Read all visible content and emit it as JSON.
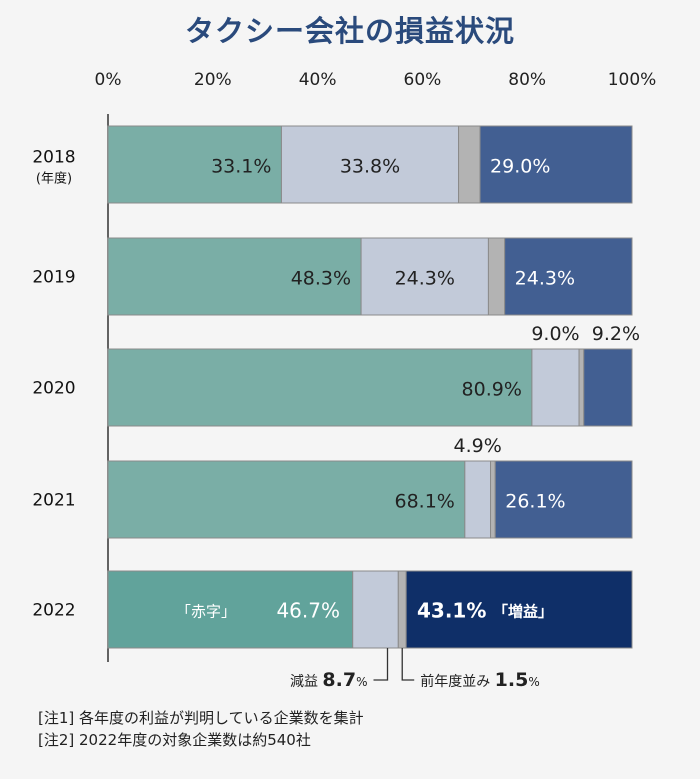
{
  "title": "タクシー会社の損益状況",
  "year_unit": "(年度)",
  "notes": [
    "[注1] 各年度の利益が判明している企業数を集計",
    "[注2] 2022年度の対象企業数は約540社"
  ],
  "highlight_2022": {
    "red_label": "「赤字」",
    "profit_label": "「増益」",
    "decrease_label": "減益",
    "decrease_value": "8.7",
    "flat_label": "前年度並み",
    "flat_value": "1.5",
    "pct_small": "%"
  },
  "colors": {
    "red": "#7aaea6",
    "red_2022": "#61a39b",
    "decrease": "#c2cad9",
    "flat": "#b3b3b3",
    "increase": "#425f92",
    "increase_2022": "#0f2f68"
  },
  "chart_data": {
    "type": "bar",
    "orientation": "horizontal",
    "stacked": true,
    "x_ticks": [
      "0%",
      "20%",
      "40%",
      "60%",
      "80%",
      "100%"
    ],
    "xlim": [
      0,
      100
    ],
    "categories": [
      "2018",
      "2019",
      "2020",
      "2021",
      "2022"
    ],
    "series": [
      {
        "key": "red",
        "values": [
          33.1,
          48.3,
          80.9,
          68.1,
          46.7
        ],
        "labels": [
          "33.1%",
          "48.3%",
          "80.9%",
          "68.1%",
          "46.7%"
        ]
      },
      {
        "key": "decrease",
        "values": [
          33.8,
          24.3,
          9.0,
          4.9,
          8.7
        ],
        "labels": [
          "33.8%",
          "24.3%",
          "9.0%",
          "4.9%",
          ""
        ]
      },
      {
        "key": "flat",
        "values": [
          4.1,
          3.1,
          0.9,
          0.9,
          1.5
        ],
        "labels": [
          "",
          "",
          "",
          "",
          ""
        ]
      },
      {
        "key": "increase",
        "values": [
          29.0,
          24.3,
          9.2,
          26.1,
          43.1
        ],
        "labels": [
          "29.0%",
          "24.3%",
          "9.2%",
          "26.1%",
          "43.1%"
        ]
      }
    ]
  }
}
